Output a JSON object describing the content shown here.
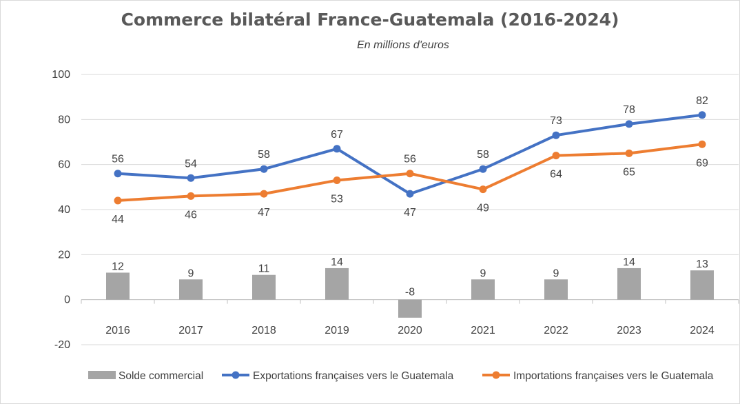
{
  "chart_data": {
    "type": "bar+line",
    "title": "Commerce bilatéral France-Guatemala (2016-2024)",
    "subtitle": "En millions d'euros",
    "categories": [
      "2016",
      "2017",
      "2018",
      "2019",
      "2020",
      "2021",
      "2022",
      "2023",
      "2024"
    ],
    "ylim": [
      -20,
      100
    ],
    "yticks": [
      -20,
      0,
      20,
      40,
      60,
      80,
      100
    ],
    "grid": true,
    "legend_position": "bottom",
    "series": [
      {
        "name": "Solde commercial",
        "kind": "bar",
        "color": "#a5a5a5",
        "values": [
          12,
          9,
          11,
          14,
          -8,
          9,
          9,
          14,
          13
        ]
      },
      {
        "name": "Exportations françaises vers le Guatemala",
        "kind": "line",
        "color": "#4472c4",
        "values": [
          56,
          54,
          58,
          67,
          47,
          58,
          73,
          78,
          82
        ]
      },
      {
        "name": "Importations françaises vers le Guatemala",
        "kind": "line",
        "color": "#ed7d31",
        "values": [
          44,
          46,
          47,
          53,
          56,
          49,
          64,
          65,
          69
        ]
      }
    ]
  }
}
